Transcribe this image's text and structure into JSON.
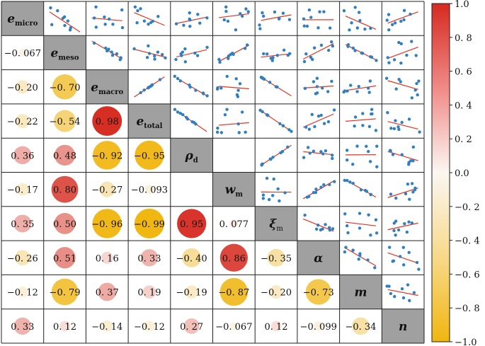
{
  "chart_data": {
    "type": "heatmap",
    "title": "",
    "variables": [
      {
        "symbol": "e",
        "sub": "micro",
        "italic": true
      },
      {
        "symbol": "e",
        "sub": "meso",
        "italic": true
      },
      {
        "symbol": "e",
        "sub": "macro",
        "italic": true
      },
      {
        "symbol": "e",
        "sub": "total",
        "italic": true
      },
      {
        "symbol": "ρ",
        "sub": "d",
        "italic": true
      },
      {
        "symbol": "w",
        "sub": "m",
        "italic": true
      },
      {
        "symbol": "ξ",
        "sub": "m",
        "italic": false
      },
      {
        "symbol": "α",
        "sub": "",
        "italic": true
      },
      {
        "symbol": "m",
        "sub": "",
        "italic": true
      },
      {
        "symbol": "n",
        "sub": "",
        "italic": true
      }
    ],
    "lower_triangle": [
      {
        "row": 1,
        "col": 0,
        "value": -0.067,
        "label": "−0. 067"
      },
      {
        "row": 2,
        "col": 0,
        "value": -0.2,
        "label": "−0. 20"
      },
      {
        "row": 2,
        "col": 1,
        "value": -0.7,
        "label": "−0. 70"
      },
      {
        "row": 3,
        "col": 0,
        "value": -0.22,
        "label": "−0. 22"
      },
      {
        "row": 3,
        "col": 1,
        "value": -0.54,
        "label": "−0. 54"
      },
      {
        "row": 3,
        "col": 2,
        "value": 0.98,
        "label": "0. 98"
      },
      {
        "row": 4,
        "col": 0,
        "value": 0.36,
        "label": "0. 36"
      },
      {
        "row": 4,
        "col": 1,
        "value": 0.48,
        "label": "0. 48"
      },
      {
        "row": 4,
        "col": 2,
        "value": -0.92,
        "label": "−0. 92"
      },
      {
        "row": 4,
        "col": 3,
        "value": -0.95,
        "label": "−0. 95"
      },
      {
        "row": 5,
        "col": 0,
        "value": -0.17,
        "label": "−0. 17"
      },
      {
        "row": 5,
        "col": 1,
        "value": 0.8,
        "label": "0. 80"
      },
      {
        "row": 5,
        "col": 2,
        "value": -0.27,
        "label": "−0. 27"
      },
      {
        "row": 5,
        "col": 3,
        "value": -0.093,
        "label": "−0. 093"
      },
      {
        "row": 6,
        "col": 0,
        "value": 0.35,
        "label": "0. 35"
      },
      {
        "row": 6,
        "col": 1,
        "value": 0.5,
        "label": "0. 50"
      },
      {
        "row": 6,
        "col": 2,
        "value": -0.96,
        "label": "−0. 96"
      },
      {
        "row": 6,
        "col": 3,
        "value": -0.99,
        "label": "−0. 99"
      },
      {
        "row": 6,
        "col": 4,
        "value": 0.95,
        "label": "0. 95"
      },
      {
        "row": 6,
        "col": 5,
        "value": 0.077,
        "label": "0. 077"
      },
      {
        "row": 7,
        "col": 0,
        "value": -0.26,
        "label": "−0. 26"
      },
      {
        "row": 7,
        "col": 1,
        "value": 0.51,
        "label": "0. 51"
      },
      {
        "row": 7,
        "col": 2,
        "value": 0.16,
        "label": "0. 16"
      },
      {
        "row": 7,
        "col": 3,
        "value": 0.33,
        "label": "0. 33"
      },
      {
        "row": 7,
        "col": 4,
        "value": -0.4,
        "label": "−0. 40"
      },
      {
        "row": 7,
        "col": 5,
        "value": 0.86,
        "label": "0. 86"
      },
      {
        "row": 7,
        "col": 6,
        "value": -0.35,
        "label": "−0. 35"
      },
      {
        "row": 8,
        "col": 0,
        "value": -0.12,
        "label": "−0. 12"
      },
      {
        "row": 8,
        "col": 1,
        "value": -0.79,
        "label": "−0. 79"
      },
      {
        "row": 8,
        "col": 2,
        "value": 0.37,
        "label": "0. 37"
      },
      {
        "row": 8,
        "col": 3,
        "value": 0.19,
        "label": "0. 19"
      },
      {
        "row": 8,
        "col": 4,
        "value": -0.19,
        "label": "−0. 19"
      },
      {
        "row": 8,
        "col": 5,
        "value": -0.87,
        "label": "−0. 87"
      },
      {
        "row": 8,
        "col": 6,
        "value": -0.2,
        "label": "−0. 20"
      },
      {
        "row": 8,
        "col": 7,
        "value": -0.73,
        "label": "−0. 73"
      },
      {
        "row": 9,
        "col": 0,
        "value": 0.33,
        "label": "0. 33"
      },
      {
        "row": 9,
        "col": 1,
        "value": 0.12,
        "label": "0. 12"
      },
      {
        "row": 9,
        "col": 2,
        "value": -0.14,
        "label": "−0. 14"
      },
      {
        "row": 9,
        "col": 3,
        "value": -0.12,
        "label": "−0. 12"
      },
      {
        "row": 9,
        "col": 4,
        "value": 0.27,
        "label": "0. 27"
      },
      {
        "row": 9,
        "col": 5,
        "value": -0.067,
        "label": "−0. 067"
      },
      {
        "row": 9,
        "col": 6,
        "value": 0.12,
        "label": "0. 12"
      },
      {
        "row": 9,
        "col": 7,
        "value": -0.099,
        "label": "−0. 099"
      },
      {
        "row": 9,
        "col": 8,
        "value": -0.34,
        "label": "−0. 34"
      }
    ],
    "upper_triangle": {
      "type": "scatter_with_fit_line",
      "point_color": "#2f7fc1",
      "line_color": "#e8321e",
      "empty_cells": [
        [
          4,
          5
        ]
      ]
    },
    "colorbar": {
      "range": [
        -1.0,
        1.0
      ],
      "ticks": [
        1.0,
        0.8,
        0.6,
        0.4,
        0.2,
        0.0,
        -0.2,
        -0.4,
        -0.6,
        -0.8,
        -1.0
      ],
      "tick_labels": [
        "1.0",
        "0. 8",
        "0. 6",
        "0. 4",
        "0. 2",
        "0.0",
        "−0. 2",
        "−0. 4",
        "−0. 6",
        "−0. 8",
        "−1.0"
      ],
      "color_high": "#d62a20",
      "color_mid": "#fbf7f2",
      "color_low": "#f0b60f",
      "placement": "right"
    },
    "diagonal_fill": "#a0a0a0"
  }
}
